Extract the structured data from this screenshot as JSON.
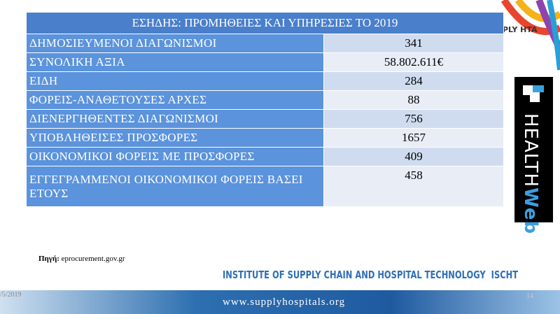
{
  "table": {
    "title": "ΕΣΗΔΗΣ: ΠΡΟΜΗΘΕΙΕΣ ΚΑΙ ΥΠΗΡΕΣΙΕΣ ΤΟ 2019",
    "rows": [
      [
        "ΔΗΜΟΣΙΕΥΜΕΝΟΙ ΔΙΑΓΩΝΙΣΜΟΙ",
        "341"
      ],
      [
        "ΣΥΝΟΛΙΚΗ ΑΞΙΑ",
        "58.802.611€"
      ],
      [
        "ΕΙΔΗ",
        "284"
      ],
      [
        "ΦΟΡΕΙΣ-ΑΝΑΘΕΤΟΥΣΕΣ ΑΡΧΕΣ",
        "88"
      ],
      [
        "ΔΙΕΝΕΡΓΗΘΕΝΤΕΣ ΔΙΑΓΩΝΙΣΜΟΙ",
        "756"
      ],
      [
        "ΥΠΟΒΛΗΘΕΙΣΕΣ ΠΡΟΣΦΟΡΕΣ",
        "1657"
      ],
      [
        "ΟΙΚΟΝΟΜΙΚΟΙ ΦΟΡΕΙΣ ΜΕ ΠΡΟΣΦΟΡΕΣ",
        "409"
      ],
      [
        "ΕΓΓΕΓΡΑΜΜΕΝΟΙ ΟΙΚΟΝΟΜΙΚΟΙ ΦΟΡΕΙΣ ΒΑΣΕΙ ΕΤΟΥΣ",
        "458"
      ]
    ]
  },
  "source": {
    "label": "Πηγή:",
    "text": "eprocurement.gov.gr"
  },
  "logos": {
    "hta": "PLY HTA",
    "health": "HEALTH",
    "web": "Web"
  },
  "footer": {
    "institute": "INSTITUTE OF SUPPLY CHAIN AND HOSPITAL TECHNOLOGY  ISCHT",
    "url": "www.supplyhospitals.org",
    "date": "/5/2019",
    "page": "14"
  }
}
